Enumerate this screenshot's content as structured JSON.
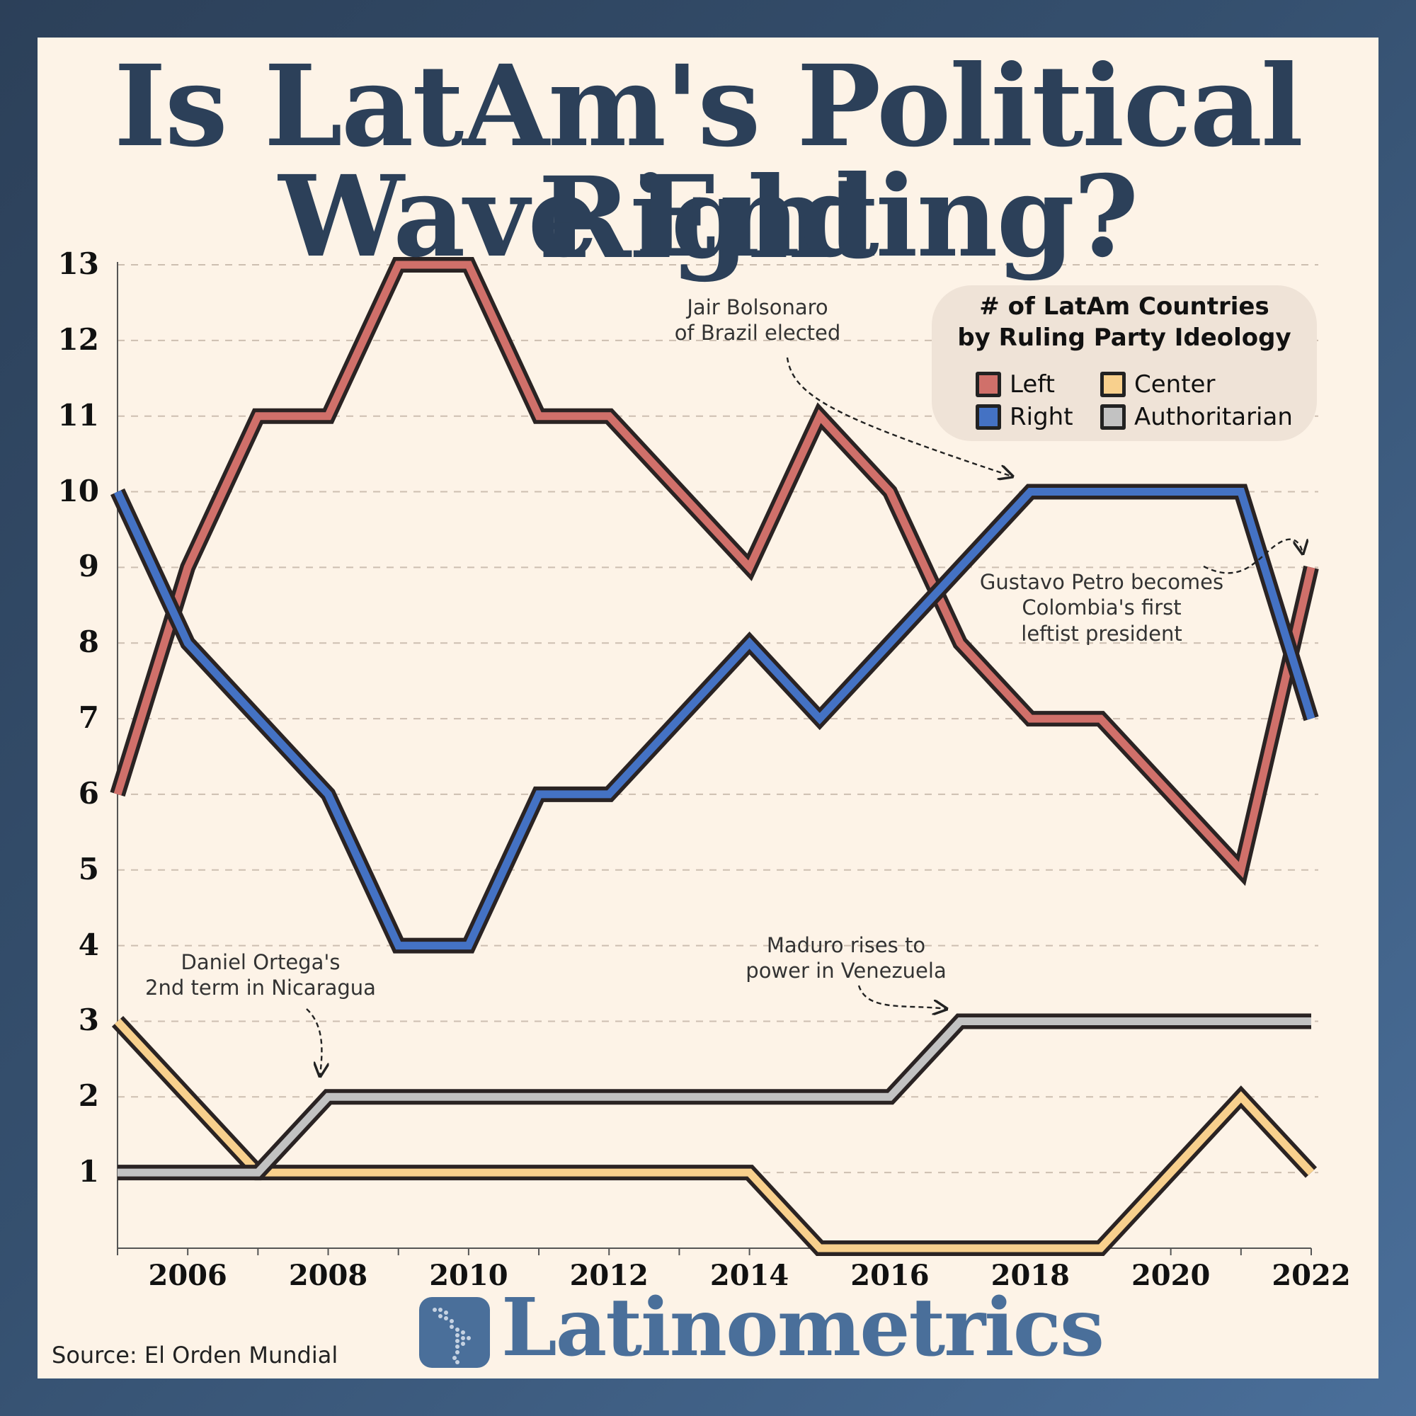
{
  "title_line_1": "Is LatAm's Political Right",
  "title_line_2": "Wave Ending?",
  "legend": {
    "title_line_1": "# of LatAm Countries",
    "title_line_2": "by Ruling Party Ideology"
  },
  "source": "Source: El Orden Mundial",
  "brand": "Latinometrics",
  "brand_logo_icon": "latin-america-map-icon",
  "annotations": {
    "bolsonaro": "Jair Bolsonaro\nof Brazil elected",
    "petro": "Gustavo Petro becomes\nColombia's first\nleftist president",
    "ortega": "Daniel Ortega's\n2nd term in Nicaragua",
    "maduro": "Maduro rises to\npower in Venezuela"
  },
  "chart_data": {
    "type": "line",
    "title": "Is LatAm's Political Right Wave Ending?",
    "xlabel": "",
    "ylabel": "",
    "x": [
      2005,
      2006,
      2007,
      2008,
      2009,
      2010,
      2011,
      2012,
      2013,
      2014,
      2015,
      2016,
      2017,
      2018,
      2019,
      2020,
      2021,
      2022
    ],
    "xticks": [
      2006,
      2008,
      2010,
      2012,
      2014,
      2016,
      2018,
      2020,
      2022
    ],
    "yticks": [
      1,
      2,
      3,
      4,
      5,
      6,
      7,
      8,
      9,
      10,
      11,
      12,
      13
    ],
    "xlim": [
      2005,
      2022
    ],
    "ylim": [
      0,
      13
    ],
    "grid": "horizontal dashed",
    "legend_position": "top-right",
    "series": [
      {
        "name": "Left",
        "color": "#d0706a",
        "values": [
          6,
          9,
          11,
          11,
          13,
          13,
          11,
          11,
          10,
          9,
          11,
          10,
          8,
          7,
          7,
          6,
          5,
          9
        ]
      },
      {
        "name": "Right",
        "color": "#4472c4",
        "values": [
          10,
          8,
          7,
          6,
          4,
          4,
          6,
          6,
          7,
          8,
          7,
          8,
          9,
          10,
          10,
          10,
          10,
          7
        ]
      },
      {
        "name": "Center",
        "color": "#f8d08d",
        "values": [
          3,
          2,
          1,
          1,
          1,
          1,
          1,
          1,
          1,
          1,
          0,
          0,
          0,
          0,
          0,
          1,
          2,
          1
        ]
      },
      {
        "name": "Authoritarian",
        "color": "#c2c2c2",
        "values": [
          1,
          1,
          1,
          2,
          2,
          2,
          2,
          2,
          2,
          2,
          2,
          2,
          3,
          3,
          3,
          3,
          3,
          3
        ]
      }
    ]
  }
}
